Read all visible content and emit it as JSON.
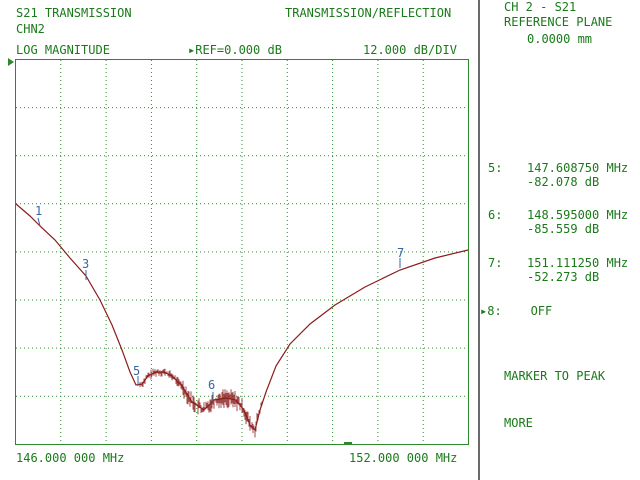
{
  "header": {
    "param": "S21 TRANSMISSION",
    "channel": "CHN2",
    "mode": "TRANSMISSION/REFLECTION",
    "format": "LOG MAGNITUDE",
    "ref": "▸REF=0.000 dB",
    "scale": "12.000 dB/DIV"
  },
  "footer": {
    "start": "146.000 000 MHz",
    "stop": "152.000 000 MHz"
  },
  "panel": {
    "title": "CH 2 - S21",
    "subtitle": "REFERENCE PLANE",
    "value": "0.0000 mm"
  },
  "marker_readouts": [
    {
      "num": "5:",
      "freq": "147.608750 MHz",
      "mag": "-82.078 dB"
    },
    {
      "num": "6:",
      "freq": "148.595000 MHz",
      "mag": "-85.559 dB"
    },
    {
      "num": "7:",
      "freq": "151.111250 MHz",
      "mag": "-52.273 dB"
    }
  ],
  "softkeys": {
    "marker8": "▸8:    OFF",
    "marker_to_peak": "MARKER TO PEAK",
    "more": "MORE"
  },
  "trace_markers": [
    "1",
    "3",
    "5",
    "6",
    "7"
  ],
  "colors": {
    "grid": "#2c8a2c",
    "trace": "#8b1c1c",
    "marker": "#3a66a0",
    "text": "#1a7a1a"
  }
}
